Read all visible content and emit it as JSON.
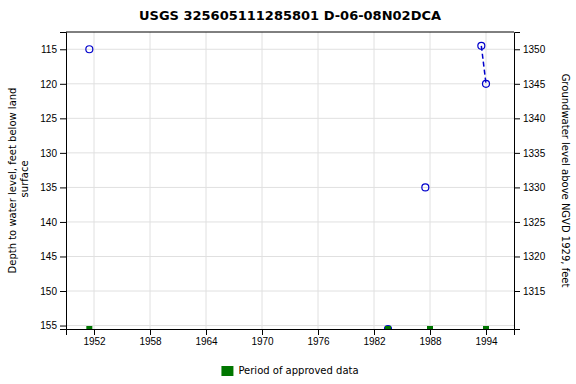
{
  "chart_data": {
    "type": "scatter",
    "title": "USGS 325605111285801 D-06-08N02DCA",
    "ylabel": "Depth to water level, feet below land\n surface",
    "y2label": "Groundwater level above NGVD 1929, feet",
    "series": [
      {
        "type": "scatter",
        "marker": "circle",
        "color": "#0000cc",
        "x": [
          1951.5,
          1983.5,
          1987.5,
          1993.5,
          1994.0
        ],
        "values": [
          115.0,
          155.5,
          135.0,
          114.5,
          120.0
        ]
      },
      {
        "type": "line",
        "line_style": "dashed",
        "color": "#0000cc",
        "x": [
          1993.5,
          1994.0
        ],
        "values": [
          114.5,
          120.0
        ]
      },
      {
        "type": "scatter",
        "marker": "square",
        "color": "#007700",
        "name": "Period of approved data",
        "x": [
          1951.5,
          1983.5,
          1988.0,
          1994.0
        ],
        "values": [
          155.5,
          155.5,
          155.5,
          155.5
        ]
      }
    ],
    "xlim": [
      1949,
      1997
    ],
    "xticks": [
      1952,
      1958,
      1964,
      1970,
      1976,
      1982,
      1988,
      1994
    ],
    "ylim": [
      155.5,
      112.5
    ],
    "yticks": [
      115,
      120,
      125,
      130,
      135,
      140,
      145,
      150,
      155
    ],
    "y2lim": [
      1309.5,
      1352.5
    ],
    "y2ticks": [
      1350,
      1345,
      1340,
      1335,
      1330,
      1325,
      1320,
      1315
    ],
    "grid": true,
    "legend": "bottom"
  }
}
